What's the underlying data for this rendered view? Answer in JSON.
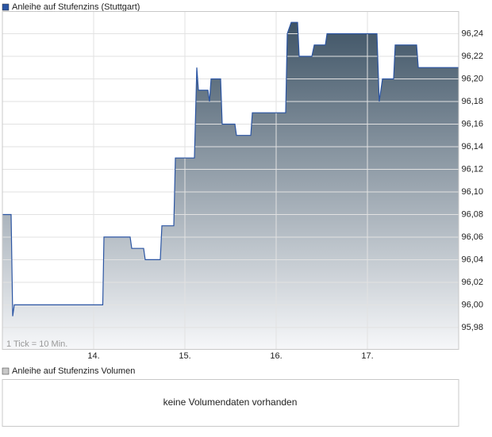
{
  "chart_data": {
    "type": "area-line",
    "legend": "Anleihe auf Stufenzins (Stuttgart)",
    "annotation": "1 Tick = 10 Min.",
    "xlim": [
      13.0,
      18.0
    ],
    "xticks": [
      {
        "value": 14,
        "label": "14."
      },
      {
        "value": 15,
        "label": "15."
      },
      {
        "value": 16,
        "label": "16."
      },
      {
        "value": 17,
        "label": "17."
      }
    ],
    "ylim": [
      95.961,
      96.26
    ],
    "yticks": [
      {
        "value": 95.98,
        "label": "95,98"
      },
      {
        "value": 96.0,
        "label": "96,00"
      },
      {
        "value": 96.02,
        "label": "96,02"
      },
      {
        "value": 96.04,
        "label": "96,04"
      },
      {
        "value": 96.06,
        "label": "96,06"
      },
      {
        "value": 96.08,
        "label": "96,08"
      },
      {
        "value": 96.1,
        "label": "96,10"
      },
      {
        "value": 96.12,
        "label": "96,12"
      },
      {
        "value": 96.14,
        "label": "96,14"
      },
      {
        "value": 96.16,
        "label": "96,16"
      },
      {
        "value": 96.18,
        "label": "96,18"
      },
      {
        "value": 96.2,
        "label": "96,20"
      },
      {
        "value": 96.22,
        "label": "96,22"
      },
      {
        "value": 96.24,
        "label": "96,24"
      }
    ],
    "grid": true,
    "series": [
      {
        "color": "#2b55a3",
        "x": [
          13.0,
          13.096,
          13.113,
          13.13,
          14.1,
          14.113,
          14.4,
          14.417,
          14.548,
          14.565,
          14.73,
          14.748,
          14.878,
          14.896,
          15.104,
          15.13,
          15.148,
          15.252,
          15.27,
          15.287,
          15.391,
          15.409,
          15.548,
          15.565,
          15.722,
          15.739,
          16.104,
          16.122,
          16.165,
          16.235,
          16.252,
          16.391,
          16.417,
          16.539,
          16.557,
          17.104,
          17.13,
          17.165,
          17.287,
          17.304,
          17.539,
          17.557,
          18.0
        ],
        "values": [
          96.08,
          96.08,
          95.99,
          96.0,
          96.0,
          96.06,
          96.06,
          96.05,
          96.05,
          96.04,
          96.04,
          96.07,
          96.07,
          96.13,
          96.13,
          96.21,
          96.19,
          96.19,
          96.18,
          96.2,
          96.2,
          96.16,
          96.16,
          96.15,
          96.15,
          96.17,
          96.17,
          96.24,
          96.25,
          96.25,
          96.22,
          96.22,
          96.23,
          96.23,
          96.24,
          96.24,
          96.18,
          96.2,
          96.2,
          96.23,
          96.23,
          96.21,
          96.21
        ]
      }
    ]
  },
  "volume": {
    "legend": "Anleihe auf Stufenzins Volumen",
    "message": "keine Volumendaten vorhanden"
  }
}
